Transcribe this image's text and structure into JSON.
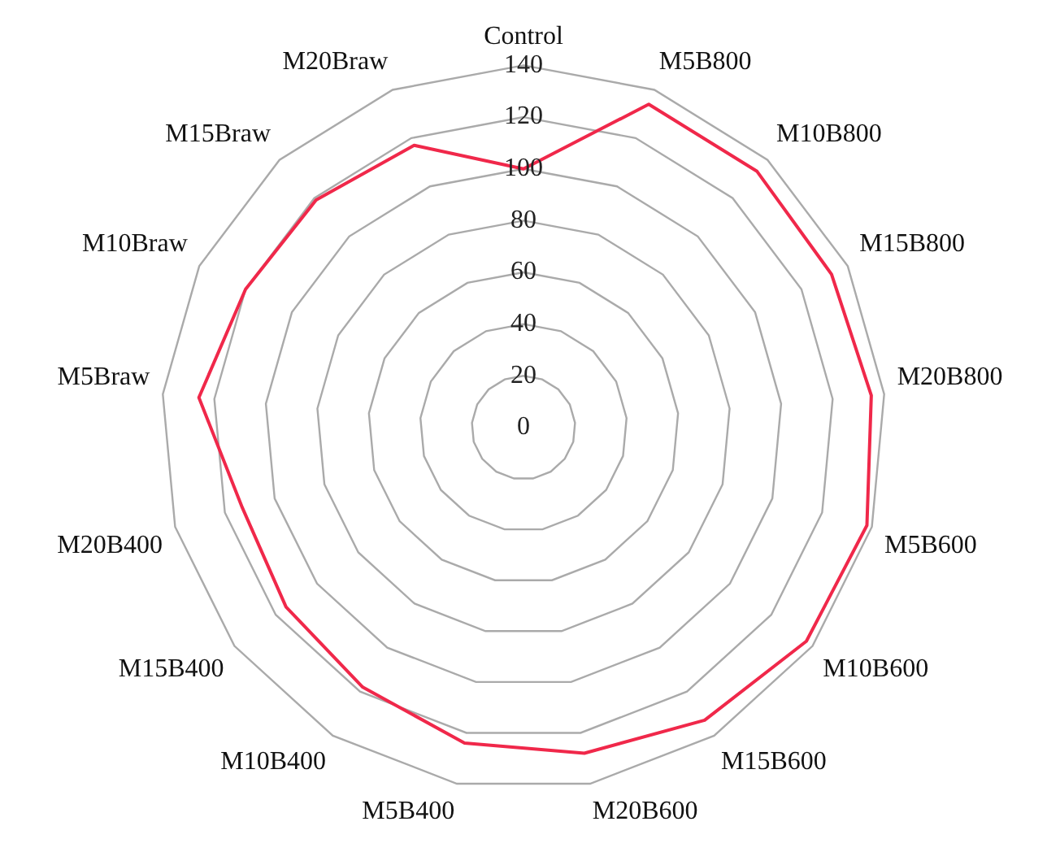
{
  "chart_data": {
    "type": "radar",
    "categories": [
      "Control",
      "M5B800",
      "M10B800",
      "M15B800",
      "M20B800",
      "M5B600",
      "M10B600",
      "M15B600",
      "M20B600",
      "M5B400",
      "M10B400",
      "M15B400",
      "M20B400",
      "M5Braw",
      "M10Braw",
      "M15Braw",
      "M20Braw"
    ],
    "series": [
      {
        "color": "#f0284a",
        "values": [
          100,
          134,
          134,
          133,
          135,
          138,
          137,
          133,
          128,
          124,
          118,
          115,
          113,
          126,
          120,
          119,
          117
        ]
      }
    ],
    "ylim": [
      0,
      140
    ],
    "yticks": [
      0,
      20,
      40,
      60,
      80,
      100,
      120,
      140
    ],
    "grid": true,
    "legend": false,
    "marker": "none"
  }
}
